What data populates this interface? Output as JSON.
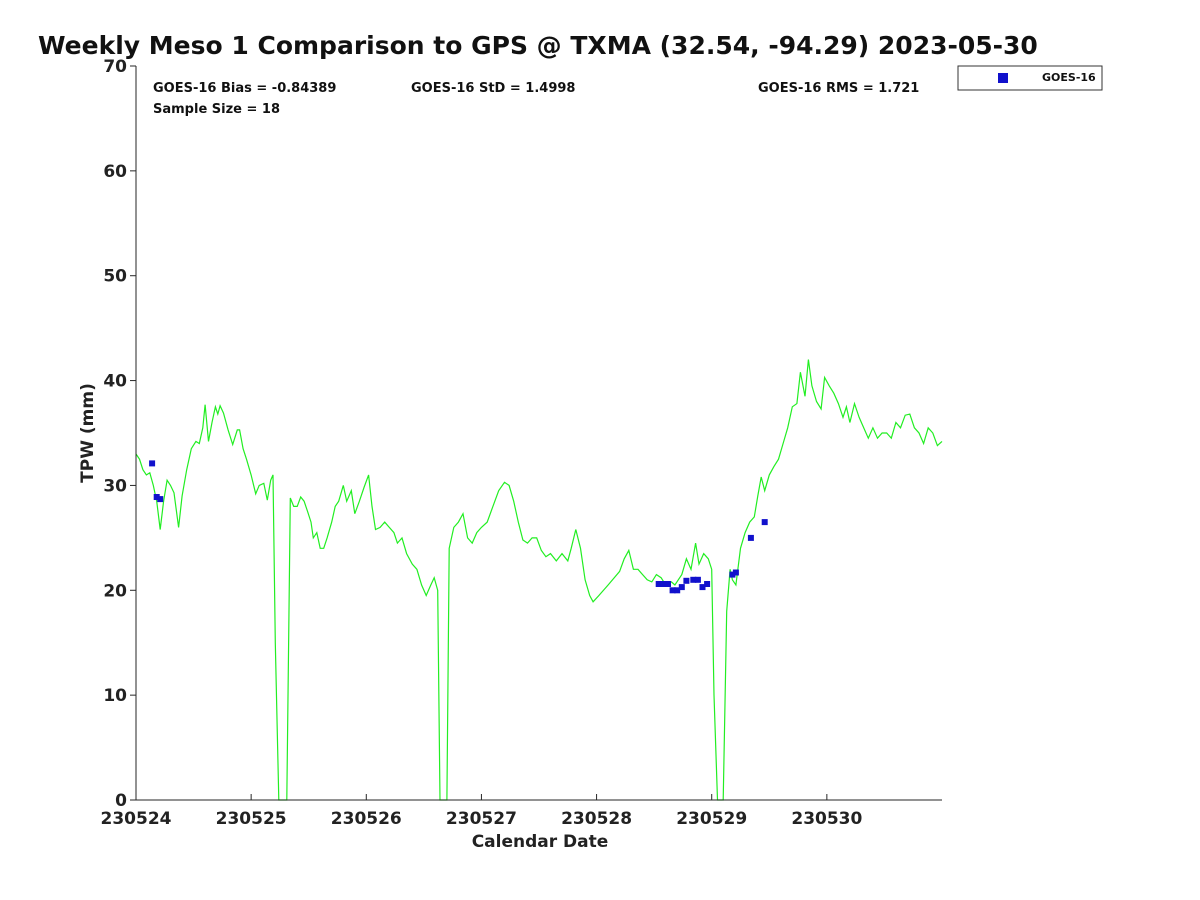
{
  "chart_data": {
    "type": "scatter",
    "title": "Weekly Meso 1 Comparison to GPS @ TXMA (32.54, -94.29) 2023-05-30",
    "xlabel": "Calendar Date",
    "ylabel": "TPW (mm)",
    "xlim": [
      230524,
      230531
    ],
    "ylim": [
      0,
      70
    ],
    "x_ticks": [
      230524,
      230525,
      230526,
      230527,
      230528,
      230529,
      230530
    ],
    "x_tick_labels": [
      "230524",
      "230525",
      "230526",
      "230527",
      "230528",
      "230529",
      "230530"
    ],
    "y_ticks": [
      0,
      10,
      20,
      30,
      40,
      50,
      60,
      70
    ],
    "y_tick_labels": [
      "0",
      "10",
      "20",
      "30",
      "40",
      "50",
      "60",
      "70"
    ],
    "grid": false,
    "legend_position": "top-right",
    "stats": {
      "bias": "GOES-16 Bias = -0.84389",
      "std": "GOES-16 StD = 1.4998",
      "rms": "GOES-16 RMS = 1.721",
      "sample": "Sample Size = 18"
    },
    "colors": {
      "gps_line": "#22ee22",
      "goes_marker": "#1111cc"
    },
    "series": [
      {
        "type": "line",
        "points": [
          [
            230524.0,
            33.0
          ],
          [
            230524.03,
            32.5
          ],
          [
            230524.06,
            31.5
          ],
          [
            230524.09,
            31.0
          ],
          [
            230524.12,
            31.2
          ],
          [
            230524.15,
            30.0
          ],
          [
            230524.18,
            28.5
          ],
          [
            230524.21,
            25.8
          ],
          [
            230524.24,
            28.5
          ],
          [
            230524.27,
            30.5
          ],
          [
            230524.3,
            30.0
          ],
          [
            230524.33,
            29.3
          ],
          [
            230524.37,
            26.0
          ],
          [
            230524.4,
            29.0
          ],
          [
            230524.44,
            31.5
          ],
          [
            230524.48,
            33.5
          ],
          [
            230524.52,
            34.2
          ],
          [
            230524.55,
            34.0
          ],
          [
            230524.58,
            35.5
          ],
          [
            230524.6,
            37.7
          ],
          [
            230524.63,
            34.2
          ],
          [
            230524.66,
            36.0
          ],
          [
            230524.69,
            37.5
          ],
          [
            230524.71,
            36.8
          ],
          [
            230524.73,
            37.6
          ],
          [
            230524.76,
            36.9
          ],
          [
            230524.8,
            35.3
          ],
          [
            230524.84,
            33.9
          ],
          [
            230524.88,
            35.3
          ],
          [
            230524.9,
            35.3
          ],
          [
            230524.93,
            33.5
          ],
          [
            230524.96,
            32.5
          ],
          [
            230525.0,
            31.0
          ],
          [
            230525.04,
            29.2
          ],
          [
            230525.07,
            30.0
          ],
          [
            230525.11,
            30.2
          ],
          [
            230525.14,
            28.6
          ],
          [
            230525.17,
            30.5
          ],
          [
            230525.19,
            31.0
          ],
          [
            230525.21,
            15.0
          ],
          [
            230525.24,
            0.0
          ],
          [
            230525.31,
            0.0
          ],
          [
            230525.34,
            28.8
          ],
          [
            230525.37,
            28.0
          ],
          [
            230525.4,
            28.0
          ],
          [
            230525.43,
            28.9
          ],
          [
            230525.46,
            28.5
          ],
          [
            230525.49,
            27.5
          ],
          [
            230525.52,
            26.5
          ],
          [
            230525.54,
            25.0
          ],
          [
            230525.57,
            25.5
          ],
          [
            230525.6,
            24.0
          ],
          [
            230525.63,
            24.0
          ],
          [
            230525.66,
            25.0
          ],
          [
            230525.7,
            26.5
          ],
          [
            230525.73,
            28.0
          ],
          [
            230525.76,
            28.5
          ],
          [
            230525.8,
            30.0
          ],
          [
            230525.83,
            28.5
          ],
          [
            230525.87,
            29.5
          ],
          [
            230525.9,
            27.3
          ],
          [
            230525.94,
            28.5
          ],
          [
            230525.98,
            29.8
          ],
          [
            230526.02,
            31.0
          ],
          [
            230526.05,
            28.0
          ],
          [
            230526.08,
            25.8
          ],
          [
            230526.12,
            26.0
          ],
          [
            230526.16,
            26.5
          ],
          [
            230526.2,
            26.0
          ],
          [
            230526.24,
            25.5
          ],
          [
            230526.27,
            24.5
          ],
          [
            230526.31,
            25.0
          ],
          [
            230526.35,
            23.5
          ],
          [
            230526.4,
            22.5
          ],
          [
            230526.44,
            22.0
          ],
          [
            230526.48,
            20.5
          ],
          [
            230526.52,
            19.5
          ],
          [
            230526.56,
            20.5
          ],
          [
            230526.59,
            21.2
          ],
          [
            230526.62,
            20.0
          ],
          [
            230526.64,
            0.0
          ],
          [
            230526.7,
            0.0
          ],
          [
            230526.72,
            24.0
          ],
          [
            230526.76,
            26.0
          ],
          [
            230526.8,
            26.5
          ],
          [
            230526.84,
            27.3
          ],
          [
            230526.88,
            25.0
          ],
          [
            230526.92,
            24.5
          ],
          [
            230526.96,
            25.5
          ],
          [
            230527.0,
            26.0
          ],
          [
            230527.05,
            26.5
          ],
          [
            230527.1,
            28.0
          ],
          [
            230527.15,
            29.5
          ],
          [
            230527.2,
            30.3
          ],
          [
            230527.24,
            30.0
          ],
          [
            230527.28,
            28.5
          ],
          [
            230527.32,
            26.5
          ],
          [
            230527.36,
            24.8
          ],
          [
            230527.4,
            24.5
          ],
          [
            230527.44,
            25.0
          ],
          [
            230527.48,
            25.0
          ],
          [
            230527.52,
            23.8
          ],
          [
            230527.56,
            23.2
          ],
          [
            230527.6,
            23.5
          ],
          [
            230527.65,
            22.8
          ],
          [
            230527.7,
            23.5
          ],
          [
            230527.75,
            22.8
          ],
          [
            230527.78,
            24.0
          ],
          [
            230527.82,
            25.8
          ],
          [
            230527.86,
            24.0
          ],
          [
            230527.9,
            21.0
          ],
          [
            230527.94,
            19.5
          ],
          [
            230527.97,
            18.9
          ],
          [
            230528.02,
            19.5
          ],
          [
            230528.1,
            20.5
          ],
          [
            230528.2,
            21.8
          ],
          [
            230528.24,
            23.0
          ],
          [
            230528.28,
            23.8
          ],
          [
            230528.32,
            22.0
          ],
          [
            230528.36,
            22.0
          ],
          [
            230528.4,
            21.5
          ],
          [
            230528.44,
            21.0
          ],
          [
            230528.48,
            20.8
          ],
          [
            230528.52,
            21.5
          ],
          [
            230528.56,
            21.2
          ],
          [
            230528.6,
            20.5
          ],
          [
            230528.65,
            20.8
          ],
          [
            230528.68,
            20.5
          ],
          [
            230528.71,
            21.0
          ],
          [
            230528.74,
            21.5
          ],
          [
            230528.78,
            23.0
          ],
          [
            230528.82,
            22.0
          ],
          [
            230528.86,
            24.5
          ],
          [
            230528.89,
            22.5
          ],
          [
            230528.93,
            23.5
          ],
          [
            230528.97,
            23.0
          ],
          [
            230529.0,
            22.0
          ],
          [
            230529.02,
            10.0
          ],
          [
            230529.05,
            0.0
          ],
          [
            230529.1,
            0.0
          ],
          [
            230529.13,
            18.0
          ],
          [
            230529.16,
            22.0
          ],
          [
            230529.18,
            21.0
          ],
          [
            230529.21,
            20.5
          ],
          [
            230529.25,
            24.0
          ],
          [
            230529.29,
            25.5
          ],
          [
            230529.33,
            26.5
          ],
          [
            230529.37,
            27.0
          ],
          [
            230529.4,
            29.0
          ],
          [
            230529.43,
            30.8
          ],
          [
            230529.46,
            29.5
          ],
          [
            230529.5,
            31.0
          ],
          [
            230529.54,
            31.8
          ],
          [
            230529.58,
            32.5
          ],
          [
            230529.62,
            34.0
          ],
          [
            230529.66,
            35.5
          ],
          [
            230529.7,
            37.5
          ],
          [
            230529.74,
            37.8
          ],
          [
            230529.77,
            40.8
          ],
          [
            230529.81,
            38.5
          ],
          [
            230529.84,
            42.0
          ],
          [
            230529.87,
            39.5
          ],
          [
            230529.91,
            38.0
          ],
          [
            230529.95,
            37.3
          ],
          [
            230529.98,
            40.3
          ],
          [
            230530.02,
            39.5
          ],
          [
            230530.06,
            38.8
          ],
          [
            230530.1,
            37.8
          ],
          [
            230530.14,
            36.5
          ],
          [
            230530.17,
            37.5
          ],
          [
            230530.2,
            36.0
          ],
          [
            230530.24,
            37.8
          ],
          [
            230530.28,
            36.5
          ],
          [
            230530.32,
            35.5
          ],
          [
            230530.36,
            34.5
          ],
          [
            230530.4,
            35.5
          ],
          [
            230530.44,
            34.5
          ],
          [
            230530.48,
            35.0
          ],
          [
            230530.52,
            35.0
          ],
          [
            230530.56,
            34.5
          ],
          [
            230530.6,
            36.0
          ],
          [
            230530.64,
            35.5
          ],
          [
            230530.68,
            36.7
          ],
          [
            230530.72,
            36.8
          ],
          [
            230530.76,
            35.5
          ],
          [
            230530.8,
            35.0
          ],
          [
            230530.84,
            34.0
          ],
          [
            230530.88,
            35.5
          ],
          [
            230530.92,
            35.0
          ],
          [
            230530.96,
            33.8
          ],
          [
            230531.0,
            34.2
          ]
        ]
      },
      {
        "name": "GOES-16",
        "type": "scatter",
        "points": [
          [
            230524.14,
            32.1
          ],
          [
            230524.18,
            28.9
          ],
          [
            230524.21,
            28.7
          ],
          [
            230528.54,
            20.6
          ],
          [
            230528.58,
            20.6
          ],
          [
            230528.62,
            20.6
          ],
          [
            230528.66,
            20.0
          ],
          [
            230528.7,
            20.0
          ],
          [
            230528.74,
            20.3
          ],
          [
            230528.78,
            20.9
          ],
          [
            230528.84,
            21.0
          ],
          [
            230528.88,
            21.0
          ],
          [
            230528.92,
            20.3
          ],
          [
            230528.96,
            20.6
          ],
          [
            230529.18,
            21.5
          ],
          [
            230529.21,
            21.7
          ],
          [
            230529.34,
            25.0
          ],
          [
            230529.46,
            26.5
          ]
        ]
      }
    ]
  }
}
